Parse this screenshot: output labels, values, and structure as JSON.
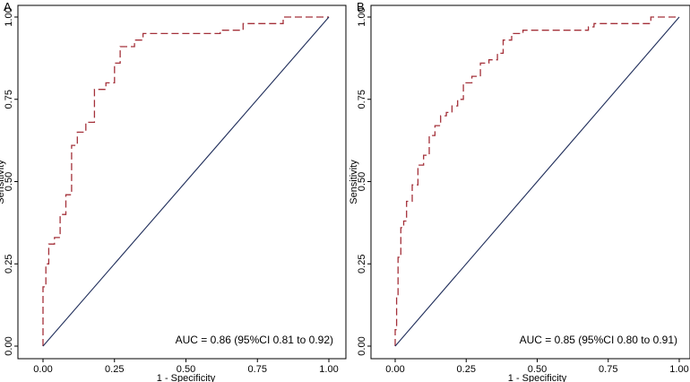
{
  "chart_data": [
    {
      "panel_label": "A",
      "type": "line",
      "xlabel": "1 - Specificity",
      "ylabel": "Sensitivity",
      "xlim": [
        0,
        1
      ],
      "ylim": [
        0,
        1
      ],
      "xticks": [
        "0.00",
        "0.25",
        "0.50",
        "0.75",
        "1.00"
      ],
      "yticks": [
        "0.00",
        "0.25",
        "0.50",
        "0.75",
        "1.00"
      ],
      "grid": false,
      "annotation": "AUC = 0.86 (95%CI 0.81 to 0.92)",
      "series": [
        {
          "style": "dashed",
          "color": "#a4313a",
          "x": [
            0,
            0,
            0.01,
            0.01,
            0.02,
            0.02,
            0.04,
            0.04,
            0.06,
            0.06,
            0.08,
            0.08,
            0.1,
            0.1,
            0.12,
            0.12,
            0.15,
            0.15,
            0.18,
            0.18,
            0.22,
            0.22,
            0.25,
            0.25,
            0.27,
            0.27,
            0.32,
            0.32,
            0.35,
            0.35,
            0.62,
            0.62,
            0.7,
            0.7,
            0.84,
            0.84,
            1.0
          ],
          "y": [
            0,
            0.18,
            0.18,
            0.25,
            0.25,
            0.31,
            0.31,
            0.33,
            0.33,
            0.4,
            0.4,
            0.46,
            0.46,
            0.61,
            0.61,
            0.65,
            0.65,
            0.68,
            0.68,
            0.78,
            0.78,
            0.8,
            0.8,
            0.86,
            0.86,
            0.91,
            0.91,
            0.93,
            0.93,
            0.95,
            0.95,
            0.96,
            0.96,
            0.98,
            0.98,
            1.0,
            1.0
          ]
        },
        {
          "style": "solid",
          "color": "#1f2d5a",
          "x": [
            0,
            1
          ],
          "y": [
            0,
            1
          ]
        }
      ]
    },
    {
      "panel_label": "B",
      "type": "line",
      "xlabel": "1 - Specificity",
      "ylabel": "Sensitivity",
      "xlim": [
        0,
        1
      ],
      "ylim": [
        0,
        1
      ],
      "xticks": [
        "0.00",
        "0.25",
        "0.50",
        "0.75",
        "1.00"
      ],
      "yticks": [
        "0.00",
        "0.25",
        "0.50",
        "0.75",
        "1.00"
      ],
      "grid": false,
      "annotation": "AUC = 0.85 (95%CI 0.80 to 0.91)",
      "series": [
        {
          "style": "dashed",
          "color": "#a4313a",
          "x": [
            0,
            0,
            0.005,
            0.005,
            0.01,
            0.01,
            0.02,
            0.02,
            0.03,
            0.03,
            0.04,
            0.04,
            0.06,
            0.06,
            0.08,
            0.08,
            0.1,
            0.1,
            0.12,
            0.12,
            0.14,
            0.14,
            0.16,
            0.16,
            0.18,
            0.18,
            0.2,
            0.2,
            0.22,
            0.22,
            0.24,
            0.24,
            0.27,
            0.27,
            0.3,
            0.3,
            0.33,
            0.33,
            0.36,
            0.36,
            0.38,
            0.38,
            0.41,
            0.41,
            0.45,
            0.45,
            0.68,
            0.68,
            0.7,
            0.7,
            0.9,
            0.9,
            1.0
          ],
          "y": [
            0,
            0.05,
            0.05,
            0.15,
            0.15,
            0.27,
            0.27,
            0.36,
            0.36,
            0.38,
            0.38,
            0.44,
            0.44,
            0.49,
            0.49,
            0.55,
            0.55,
            0.58,
            0.58,
            0.64,
            0.64,
            0.67,
            0.67,
            0.7,
            0.7,
            0.71,
            0.71,
            0.73,
            0.73,
            0.75,
            0.75,
            0.8,
            0.8,
            0.82,
            0.82,
            0.86,
            0.86,
            0.87,
            0.87,
            0.89,
            0.89,
            0.93,
            0.93,
            0.95,
            0.95,
            0.96,
            0.96,
            0.97,
            0.97,
            0.98,
            0.98,
            1.0,
            1.0
          ]
        },
        {
          "style": "solid",
          "color": "#1f2d5a",
          "x": [
            0,
            1
          ],
          "y": [
            0,
            1
          ]
        }
      ]
    }
  ]
}
